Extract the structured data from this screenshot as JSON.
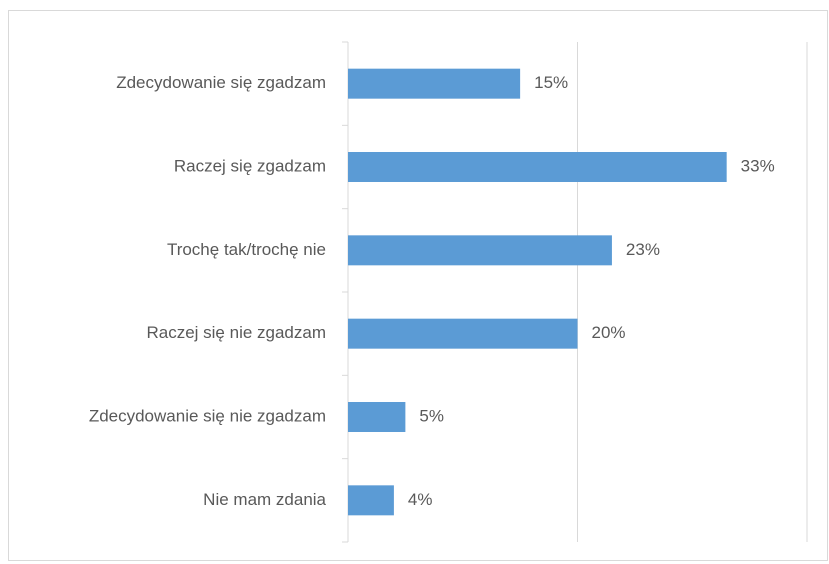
{
  "chart_data": {
    "type": "barh",
    "categories": [
      "Zdecydowanie się zgadzam",
      "Raczej się zgadzam",
      "Trochę tak/trochę nie",
      "Raczej się nie zgadzam",
      "Zdecydowanie się nie zgadzam",
      "Nie mam zdania"
    ],
    "values": [
      15,
      33,
      23,
      20,
      5,
      4
    ],
    "value_labels": [
      "15%",
      "33%",
      "23%",
      "20%",
      "5%",
      "4%"
    ],
    "color": "#5b9bd5",
    "xlim": [
      0,
      40
    ],
    "xticks": [
      0,
      20,
      40
    ],
    "grid": true
  }
}
